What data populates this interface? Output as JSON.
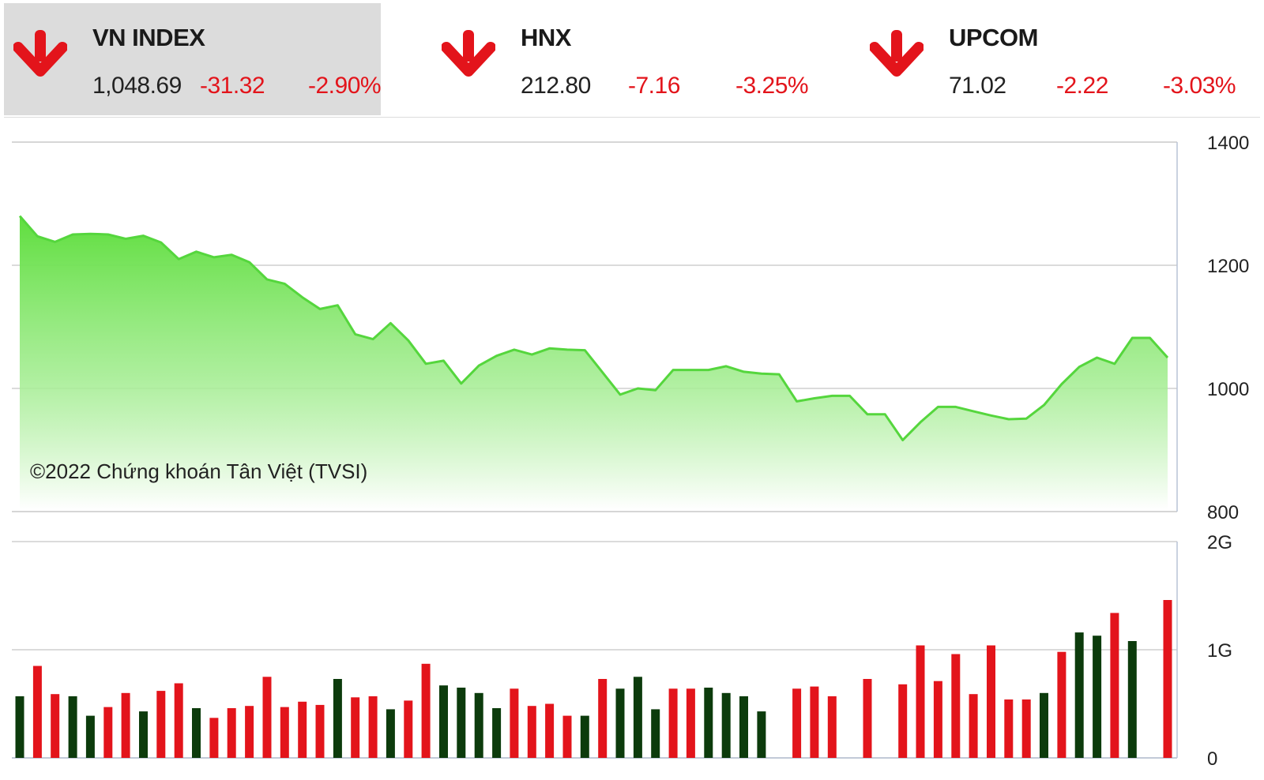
{
  "indices": [
    {
      "name": "VN INDEX",
      "value": "1,048.69",
      "change": "-31.32",
      "pct": "-2.90%",
      "direction": "down",
      "selected": true
    },
    {
      "name": "HNX",
      "value": "212.80",
      "change": "-7.16",
      "pct": "-3.25%",
      "direction": "down",
      "selected": false
    },
    {
      "name": "UPCOM",
      "value": "71.02",
      "change": "-2.22",
      "pct": "-3.03%",
      "direction": "down",
      "selected": false
    }
  ],
  "colors": {
    "down": "#e3141b",
    "up_volume": "#0c3b0c",
    "line": "#55d63d",
    "area_top": "#5fde3e"
  },
  "chart_data": [
    {
      "type": "area",
      "title": "",
      "ylim": [
        800,
        1400
      ],
      "yticks": [
        "1400",
        "1200",
        "1000",
        "800"
      ],
      "grid": true,
      "watermark": "©2022 Chứng khoán Tân Việt (TVSI)",
      "values": [
        1280,
        1247,
        1238,
        1250,
        1251,
        1250,
        1243,
        1248,
        1237,
        1210,
        1222,
        1213,
        1217,
        1205,
        1177,
        1170,
        1148,
        1129,
        1135,
        1088,
        1080,
        1106,
        1078,
        1040,
        1045,
        1008,
        1037,
        1053,
        1063,
        1055,
        1065,
        1063,
        1062,
        1026,
        990,
        1000,
        997,
        1030,
        1030,
        1030,
        1036,
        1027,
        1024,
        1023,
        979,
        984,
        988,
        988,
        958,
        958,
        916,
        945,
        970,
        970,
        963,
        956,
        950,
        951,
        973,
        1007,
        1035,
        1050,
        1040,
        1082,
        1082,
        1050
      ]
    },
    {
      "type": "bar",
      "title": "",
      "ylim": [
        0,
        2000000000
      ],
      "yticks": [
        "2G",
        "1G",
        "0"
      ],
      "grid": true,
      "series": [
        {
          "color": "up",
          "values": [
            1,
            0,
            0,
            1,
            1,
            0,
            0,
            1,
            0,
            0,
            1,
            0,
            0,
            0,
            0,
            0,
            0,
            0,
            1,
            0,
            0,
            1,
            0,
            0,
            1,
            1,
            1,
            1,
            0,
            0,
            0,
            0,
            1,
            0,
            1,
            1,
            1,
            0,
            0,
            1,
            1,
            1,
            1,
            0,
            0,
            0,
            0,
            0,
            0,
            0,
            0,
            0,
            0,
            0,
            0,
            0,
            0,
            0,
            1,
            0,
            1,
            1,
            0,
            1,
            1,
            0
          ]
        }
      ],
      "values": [
        570000000,
        850000000,
        590000000,
        570000000,
        390000000,
        470000000,
        600000000,
        430000000,
        620000000,
        690000000,
        460000000,
        370000000,
        460000000,
        480000000,
        750000000,
        470000000,
        520000000,
        490000000,
        730000000,
        560000000,
        570000000,
        450000000,
        530000000,
        870000000,
        670000000,
        650000000,
        600000000,
        460000000,
        640000000,
        480000000,
        500000000,
        390000000,
        390000000,
        730000000,
        640000000,
        750000000,
        450000000,
        640000000,
        640000000,
        650000000,
        600000000,
        570000000,
        430000000,
        0,
        640000000,
        660000000,
        570000000,
        0,
        730000000,
        0,
        680000000,
        1040000000,
        710000000,
        960000000,
        590000000,
        1040000000,
        540000000,
        540000000,
        600000000,
        980000000,
        1160000000,
        1130000000,
        1340000000,
        1080000000,
        0,
        1460000000
      ]
    }
  ]
}
